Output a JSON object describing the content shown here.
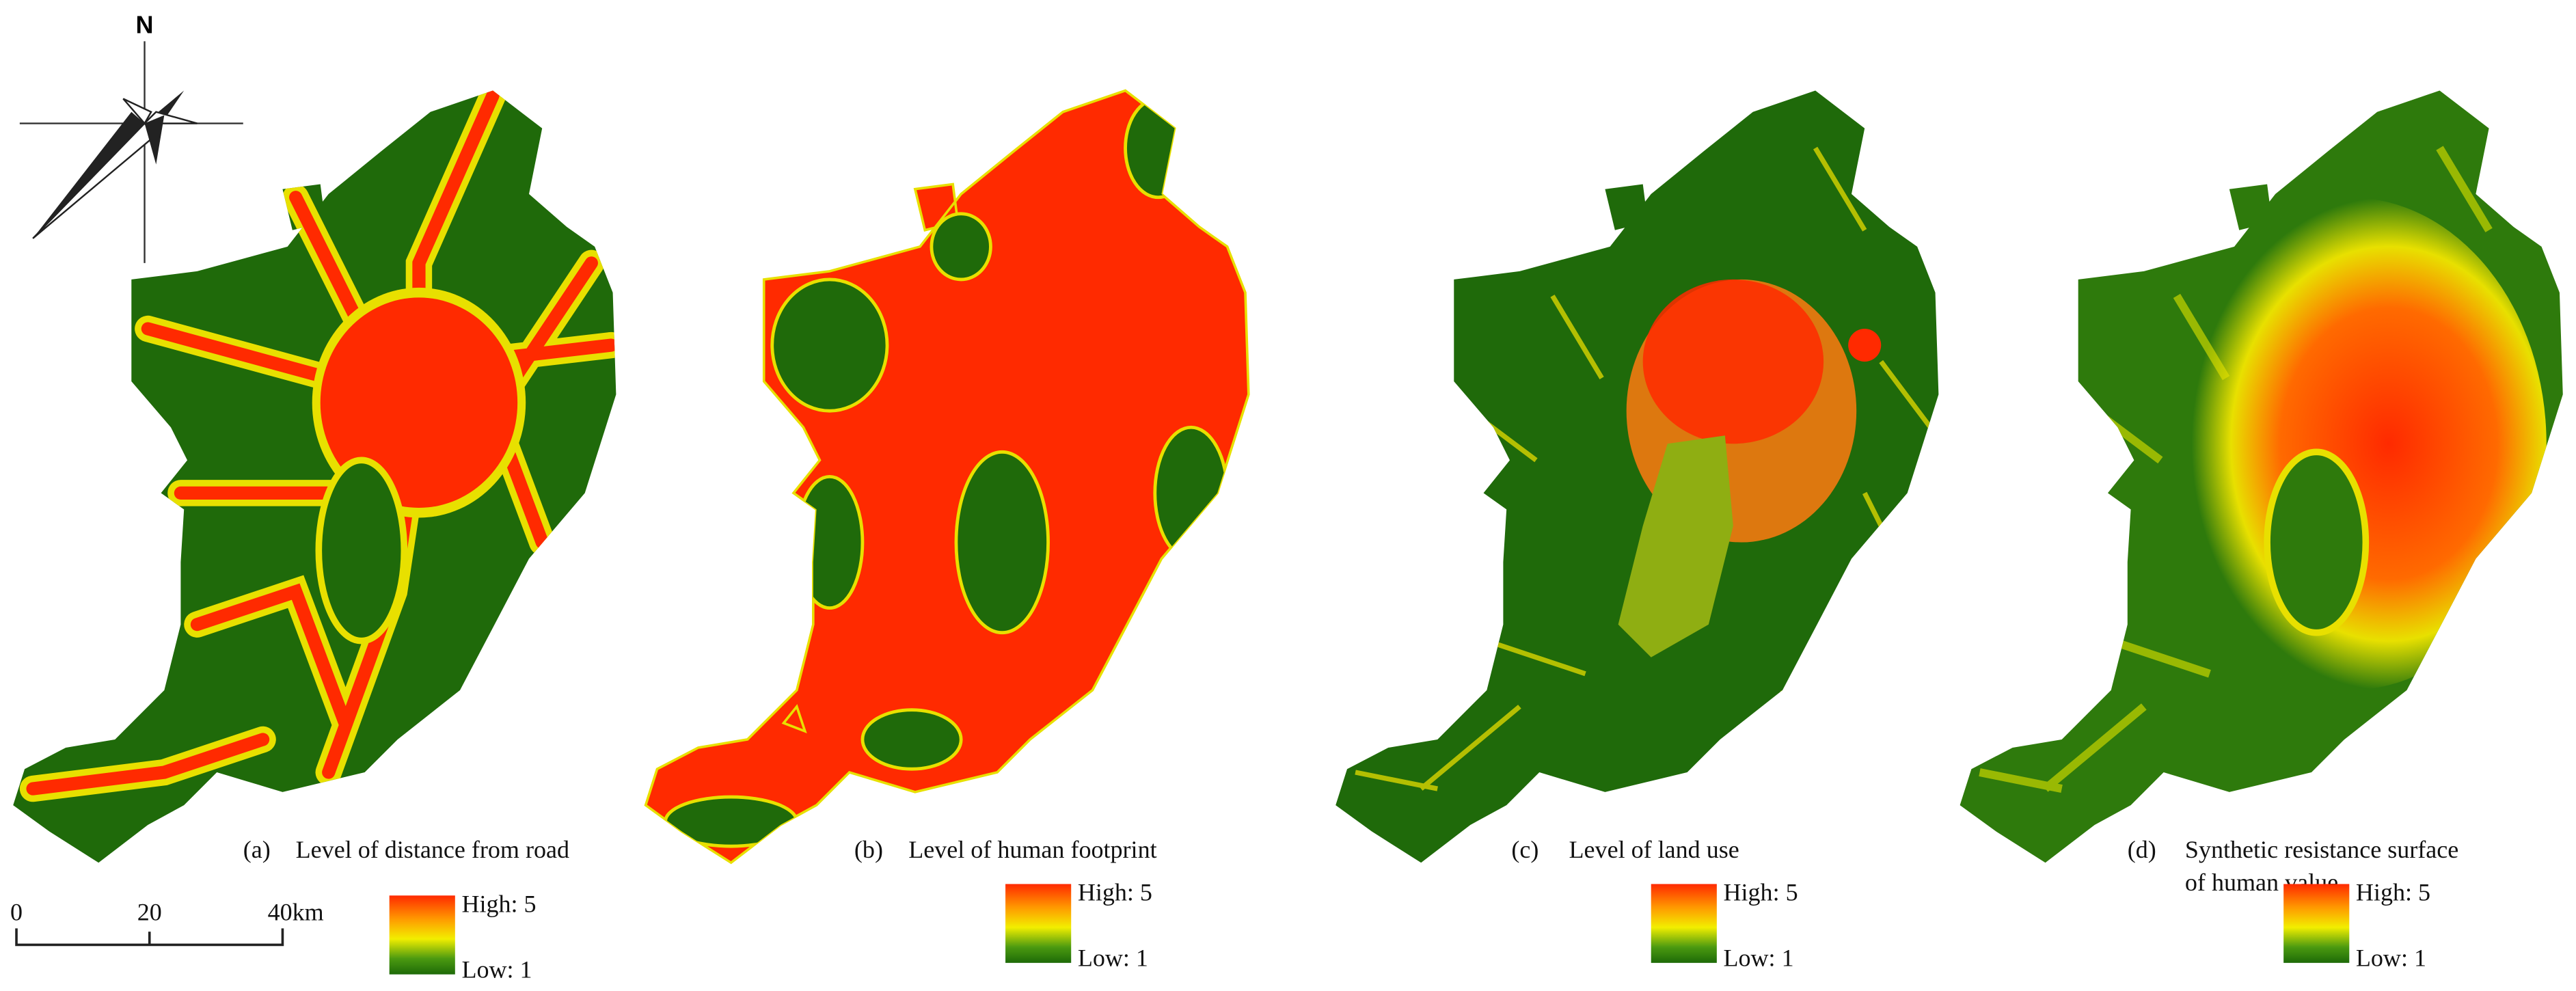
{
  "compass": {
    "label": "N"
  },
  "scale_bar": {
    "labels": [
      "0",
      "20",
      "40km"
    ]
  },
  "panels": [
    {
      "letter": "(a)",
      "caption": [
        "Level of distance from road"
      ],
      "legend": {
        "high": "High: 5",
        "low": "Low: 1"
      }
    },
    {
      "letter": "(b)",
      "caption": [
        "Level of human footprint"
      ],
      "legend": {
        "high": "High: 5",
        "low": "Low: 1"
      }
    },
    {
      "letter": "(c)",
      "caption": [
        "Level of land use"
      ],
      "legend": {
        "high": "High: 5",
        "low": "Low: 1"
      }
    },
    {
      "letter": "(d)",
      "caption": [
        "Synthetic resistance surface",
        "of human value"
      ],
      "legend": {
        "high": "High: 5",
        "low": "Low: 1"
      }
    }
  ]
}
